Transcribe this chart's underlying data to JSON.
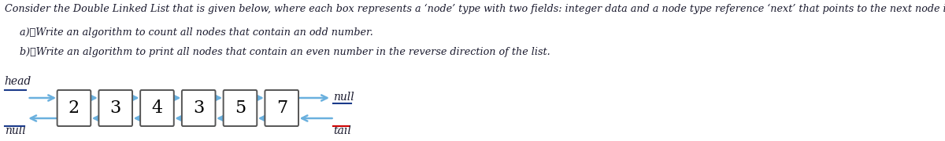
{
  "title_text": "Consider the Double Linked List that is given below, where each box represents a ‘node’ type with two fields: integer data and a node type reference ‘next’ that points to the next node in the list.",
  "item_a": "Write an algorithm to count all nodes that contain an odd number.",
  "item_b": "Write an algorithm to print all nodes that contain an even number in the reverse direction of the list.",
  "nodes": [
    2,
    3,
    4,
    3,
    5,
    7
  ],
  "head_label": "head",
  "tail_label": "tail",
  "null_right": "null",
  "null_left": "null",
  "bg_color": "#ffffff",
  "text_color": "#1a1a2e",
  "box_edge_color": "#555555",
  "arrow_color": "#6ab0de",
  "tail_underline_color": "#cc0000",
  "head_underline_color": "#1a3a8a",
  "font_size_title": 9.2,
  "font_size_nodes": 16,
  "font_size_labels": 10
}
